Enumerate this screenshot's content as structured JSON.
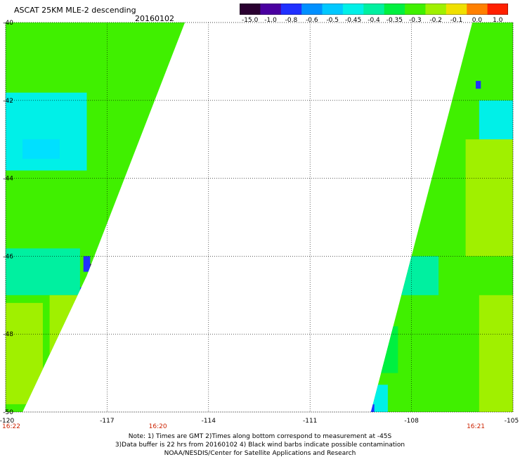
{
  "header": {
    "title": "ASCAT 25KM MLE-2 descending",
    "date": "20160102"
  },
  "colorbar": {
    "tick_labels": [
      "-15.0",
      "-1.0",
      "-0.8",
      "-0.6",
      "-0.5",
      "-0.45",
      "-0.4",
      "-0.35",
      "-0.3",
      "-0.2",
      "-0.1",
      "0.0",
      "1.0"
    ],
    "colors": [
      "#2a0030",
      "#4a00a0",
      "#2030ff",
      "#0090ff",
      "#00c8ff",
      "#00f0e8",
      "#00f0a0",
      "#00f040",
      "#40f000",
      "#a0f000",
      "#f0e000",
      "#ff8000",
      "#ff2000"
    ]
  },
  "map": {
    "lat_labels": [
      "-40",
      "-42",
      "-44",
      "-46",
      "-48",
      "-50"
    ],
    "lon_labels": [
      "-120",
      "-117",
      "-114",
      "-111",
      "-108",
      "-105"
    ],
    "lat_values": [
      -40,
      -42,
      -44,
      -46,
      -48,
      -50
    ],
    "lon_values": [
      -120,
      -117,
      -114,
      -111,
      -108,
      -105
    ],
    "lat_range": [
      -50,
      -40
    ],
    "lon_range": [
      -120,
      -105
    ],
    "time_labels": [
      {
        "text": "16:22",
        "lon": -120
      },
      {
        "text": "16:20",
        "lon": -115.5
      },
      {
        "text": "16:21",
        "lon": -106.1
      }
    ],
    "swaths": [
      {
        "name": "west-swath",
        "polygon": [
          [
            -120,
            -40
          ],
          [
            -114.7,
            -40
          ],
          [
            -117.6,
            -46.5
          ],
          [
            -119.5,
            -50
          ],
          [
            -120,
            -50
          ]
        ],
        "dominant_color": "#40f000"
      },
      {
        "name": "east-swath",
        "polygon": [
          [
            -106.2,
            -40
          ],
          [
            -105,
            -40
          ],
          [
            -105,
            -50
          ],
          [
            -109.2,
            -50
          ]
        ],
        "dominant_color": "#40f000"
      }
    ],
    "patches": [
      {
        "lon": [
          -120,
          -117.6
        ],
        "lat": [
          -41.8,
          -43.8
        ],
        "color": "#00f0e8"
      },
      {
        "lon": [
          -119.5,
          -118.4
        ],
        "lat": [
          -43.0,
          -43.5
        ],
        "color": "#00e0ff"
      },
      {
        "lon": [
          -120,
          -117.8
        ],
        "lat": [
          -45.8,
          -47.0
        ],
        "color": "#00f0a0"
      },
      {
        "lon": [
          -117.7,
          -117.5
        ],
        "lat": [
          -46.0,
          -46.4
        ],
        "color": "#2030ff"
      },
      {
        "lon": [
          -117.5,
          -117.35
        ],
        "lat": [
          -46.2,
          -46.4
        ],
        "color": "#2a0030"
      },
      {
        "lon": [
          -117.8,
          -117.6
        ],
        "lat": [
          -46.8,
          -47.0
        ],
        "color": "#2030ff"
      },
      {
        "lon": [
          -118.7,
          -117.6
        ],
        "lat": [
          -47.0,
          -48.5
        ],
        "color": "#a0f000"
      },
      {
        "lon": [
          -120,
          -118.9
        ],
        "lat": [
          -47.2,
          -49.8
        ],
        "color": "#a0f000"
      },
      {
        "lon": [
          -105.7,
          -104.9
        ],
        "lat": [
          -40.2,
          -41.5
        ],
        "color": "#40f000"
      },
      {
        "lon": [
          -106.0,
          -105.0
        ],
        "lat": [
          -42.0,
          -43.2
        ],
        "color": "#00f0e8"
      },
      {
        "lon": [
          -106.1,
          -105.95
        ],
        "lat": [
          -41.5,
          -41.7
        ],
        "color": "#2030ff"
      },
      {
        "lon": [
          -108.5,
          -107.2
        ],
        "lat": [
          -46.0,
          -47.0
        ],
        "color": "#00f0a0"
      },
      {
        "lon": [
          -106.4,
          -105.0
        ],
        "lat": [
          -43.0,
          -46.0
        ],
        "color": "#a0f000"
      },
      {
        "lon": [
          -106.0,
          -105.0
        ],
        "lat": [
          -47.0,
          -50.0
        ],
        "color": "#a0f000"
      },
      {
        "lon": [
          -109.2,
          -108.7
        ],
        "lat": [
          -49.3,
          -50.0
        ],
        "color": "#00f0e8"
      },
      {
        "lon": [
          -109.3,
          -109.1
        ],
        "lat": [
          -49.8,
          -50.0
        ],
        "color": "#2030ff"
      },
      {
        "lon": [
          -108.9,
          -108.4
        ],
        "lat": [
          -47.8,
          -49.0
        ],
        "color": "#00f040"
      }
    ]
  },
  "notes": {
    "line1": "Note: 1) Times are GMT 2)Times along bottom correspond to measurement at -45S",
    "line2": "3)Data buffer is 22 hrs from 20160102 4) Black wind barbs indicate possible contamination",
    "line3": "NOAA/NESDIS/Center for Satellite Applications and Research"
  }
}
